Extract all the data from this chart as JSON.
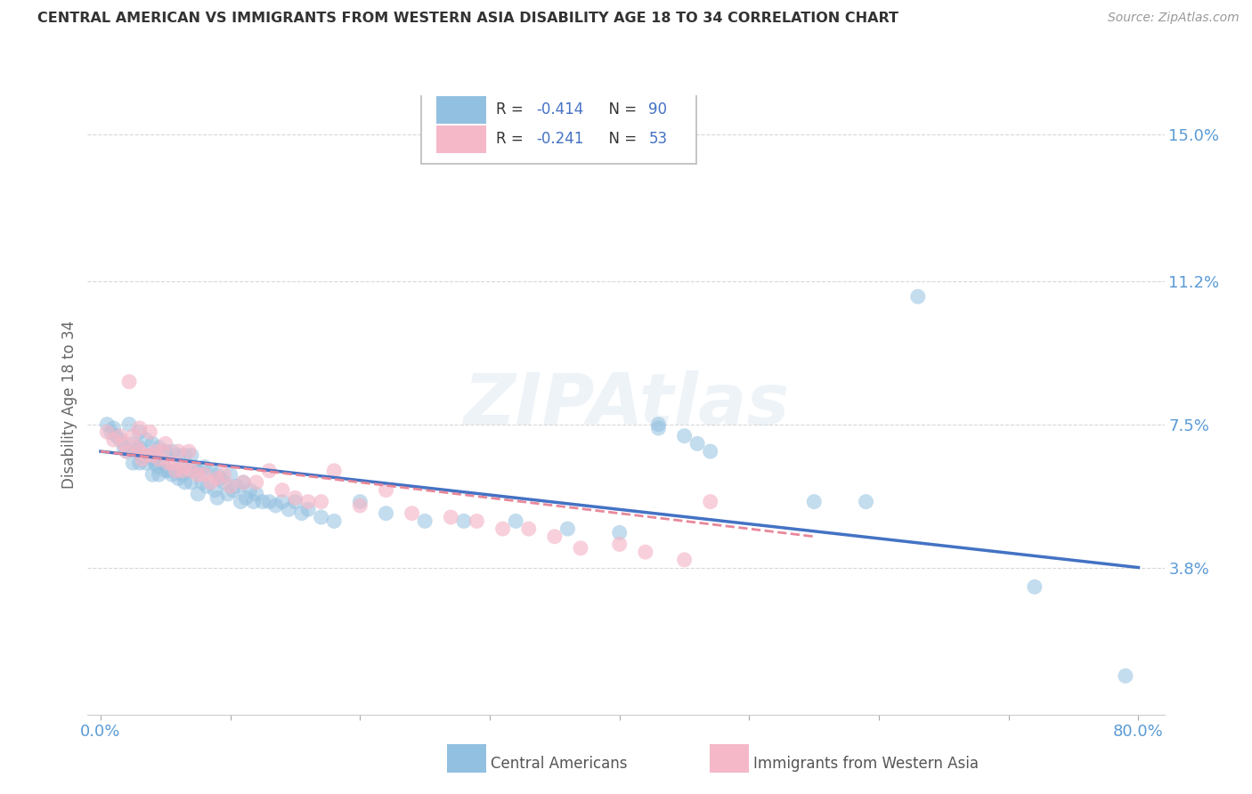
{
  "title": "CENTRAL AMERICAN VS IMMIGRANTS FROM WESTERN ASIA DISABILITY AGE 18 TO 34 CORRELATION CHART",
  "source": "Source: ZipAtlas.com",
  "ylabel": "Disability Age 18 to 34",
  "xlim": [
    -0.01,
    0.82
  ],
  "ylim": [
    0.0,
    0.16
  ],
  "xticks": [
    0.0,
    0.1,
    0.2,
    0.3,
    0.4,
    0.5,
    0.6,
    0.7,
    0.8
  ],
  "xticklabels": [
    "0.0%",
    "",
    "",
    "",
    "",
    "",
    "",
    "",
    "80.0%"
  ],
  "ytick_right_values": [
    0.038,
    0.075,
    0.112,
    0.15
  ],
  "ytick_right_labels": [
    "3.8%",
    "7.5%",
    "11.2%",
    "15.0%"
  ],
  "blue_color": "#92c0e0",
  "pink_color": "#f4b8c8",
  "blue_line_color": "#4472c4",
  "pink_line_color": "#f4b8c8",
  "blue_r": "-0.414",
  "blue_n": "90",
  "pink_r": "-0.241",
  "pink_n": "53",
  "watermark": "ZIPAtlas",
  "legend1_label": "Central Americans",
  "legend2_label": "Immigrants from Western Asia",
  "blue_scatter_x": [
    0.005,
    0.008,
    0.01,
    0.012,
    0.015,
    0.018,
    0.02,
    0.022,
    0.025,
    0.025,
    0.028,
    0.03,
    0.03,
    0.03,
    0.032,
    0.035,
    0.035,
    0.038,
    0.04,
    0.04,
    0.04,
    0.042,
    0.044,
    0.045,
    0.045,
    0.048,
    0.05,
    0.05,
    0.052,
    0.055,
    0.055,
    0.058,
    0.06,
    0.06,
    0.062,
    0.063,
    0.065,
    0.065,
    0.068,
    0.07,
    0.07,
    0.072,
    0.075,
    0.075,
    0.078,
    0.08,
    0.082,
    0.085,
    0.088,
    0.09,
    0.09,
    0.092,
    0.095,
    0.098,
    0.1,
    0.102,
    0.105,
    0.108,
    0.11,
    0.112,
    0.115,
    0.118,
    0.12,
    0.125,
    0.13,
    0.135,
    0.14,
    0.145,
    0.15,
    0.155,
    0.16,
    0.17,
    0.18,
    0.2,
    0.22,
    0.25,
    0.28,
    0.32,
    0.36,
    0.4,
    0.43,
    0.43,
    0.45,
    0.46,
    0.47,
    0.55,
    0.59,
    0.63,
    0.72,
    0.79
  ],
  "blue_scatter_y": [
    0.075,
    0.073,
    0.074,
    0.072,
    0.071,
    0.069,
    0.068,
    0.075,
    0.07,
    0.065,
    0.068,
    0.073,
    0.069,
    0.065,
    0.067,
    0.071,
    0.065,
    0.067,
    0.07,
    0.066,
    0.062,
    0.065,
    0.064,
    0.069,
    0.062,
    0.065,
    0.068,
    0.063,
    0.063,
    0.068,
    0.062,
    0.063,
    0.067,
    0.061,
    0.064,
    0.062,
    0.067,
    0.06,
    0.063,
    0.067,
    0.06,
    0.064,
    0.063,
    0.057,
    0.06,
    0.064,
    0.059,
    0.063,
    0.058,
    0.062,
    0.056,
    0.061,
    0.06,
    0.057,
    0.062,
    0.058,
    0.059,
    0.055,
    0.06,
    0.056,
    0.058,
    0.055,
    0.057,
    0.055,
    0.055,
    0.054,
    0.055,
    0.053,
    0.055,
    0.052,
    0.053,
    0.051,
    0.05,
    0.055,
    0.052,
    0.05,
    0.05,
    0.05,
    0.048,
    0.047,
    0.075,
    0.074,
    0.072,
    0.07,
    0.068,
    0.055,
    0.055,
    0.108,
    0.033,
    0.01
  ],
  "pink_scatter_x": [
    0.005,
    0.01,
    0.015,
    0.018,
    0.02,
    0.022,
    0.025,
    0.028,
    0.03,
    0.03,
    0.032,
    0.035,
    0.038,
    0.04,
    0.042,
    0.045,
    0.048,
    0.05,
    0.052,
    0.055,
    0.058,
    0.06,
    0.063,
    0.065,
    0.068,
    0.07,
    0.075,
    0.08,
    0.085,
    0.09,
    0.095,
    0.1,
    0.11,
    0.12,
    0.13,
    0.14,
    0.15,
    0.16,
    0.17,
    0.18,
    0.2,
    0.22,
    0.24,
    0.27,
    0.29,
    0.31,
    0.33,
    0.35,
    0.37,
    0.4,
    0.42,
    0.45,
    0.47
  ],
  "pink_scatter_y": [
    0.073,
    0.071,
    0.072,
    0.07,
    0.068,
    0.086,
    0.072,
    0.069,
    0.074,
    0.068,
    0.066,
    0.067,
    0.073,
    0.067,
    0.068,
    0.066,
    0.068,
    0.07,
    0.065,
    0.065,
    0.063,
    0.068,
    0.063,
    0.064,
    0.068,
    0.063,
    0.062,
    0.062,
    0.06,
    0.061,
    0.062,
    0.059,
    0.06,
    0.06,
    0.063,
    0.058,
    0.056,
    0.055,
    0.055,
    0.063,
    0.054,
    0.058,
    0.052,
    0.051,
    0.05,
    0.048,
    0.048,
    0.046,
    0.043,
    0.044,
    0.042,
    0.04,
    0.055
  ],
  "blue_trend": [
    0.0,
    0.8,
    0.068,
    0.038
  ],
  "pink_trend": [
    0.0,
    0.55,
    0.068,
    0.046
  ],
  "background_color": "#ffffff",
  "grid_color": "#d8d8d8",
  "title_color": "#333333",
  "tick_label_color": "#5b9bd5"
}
